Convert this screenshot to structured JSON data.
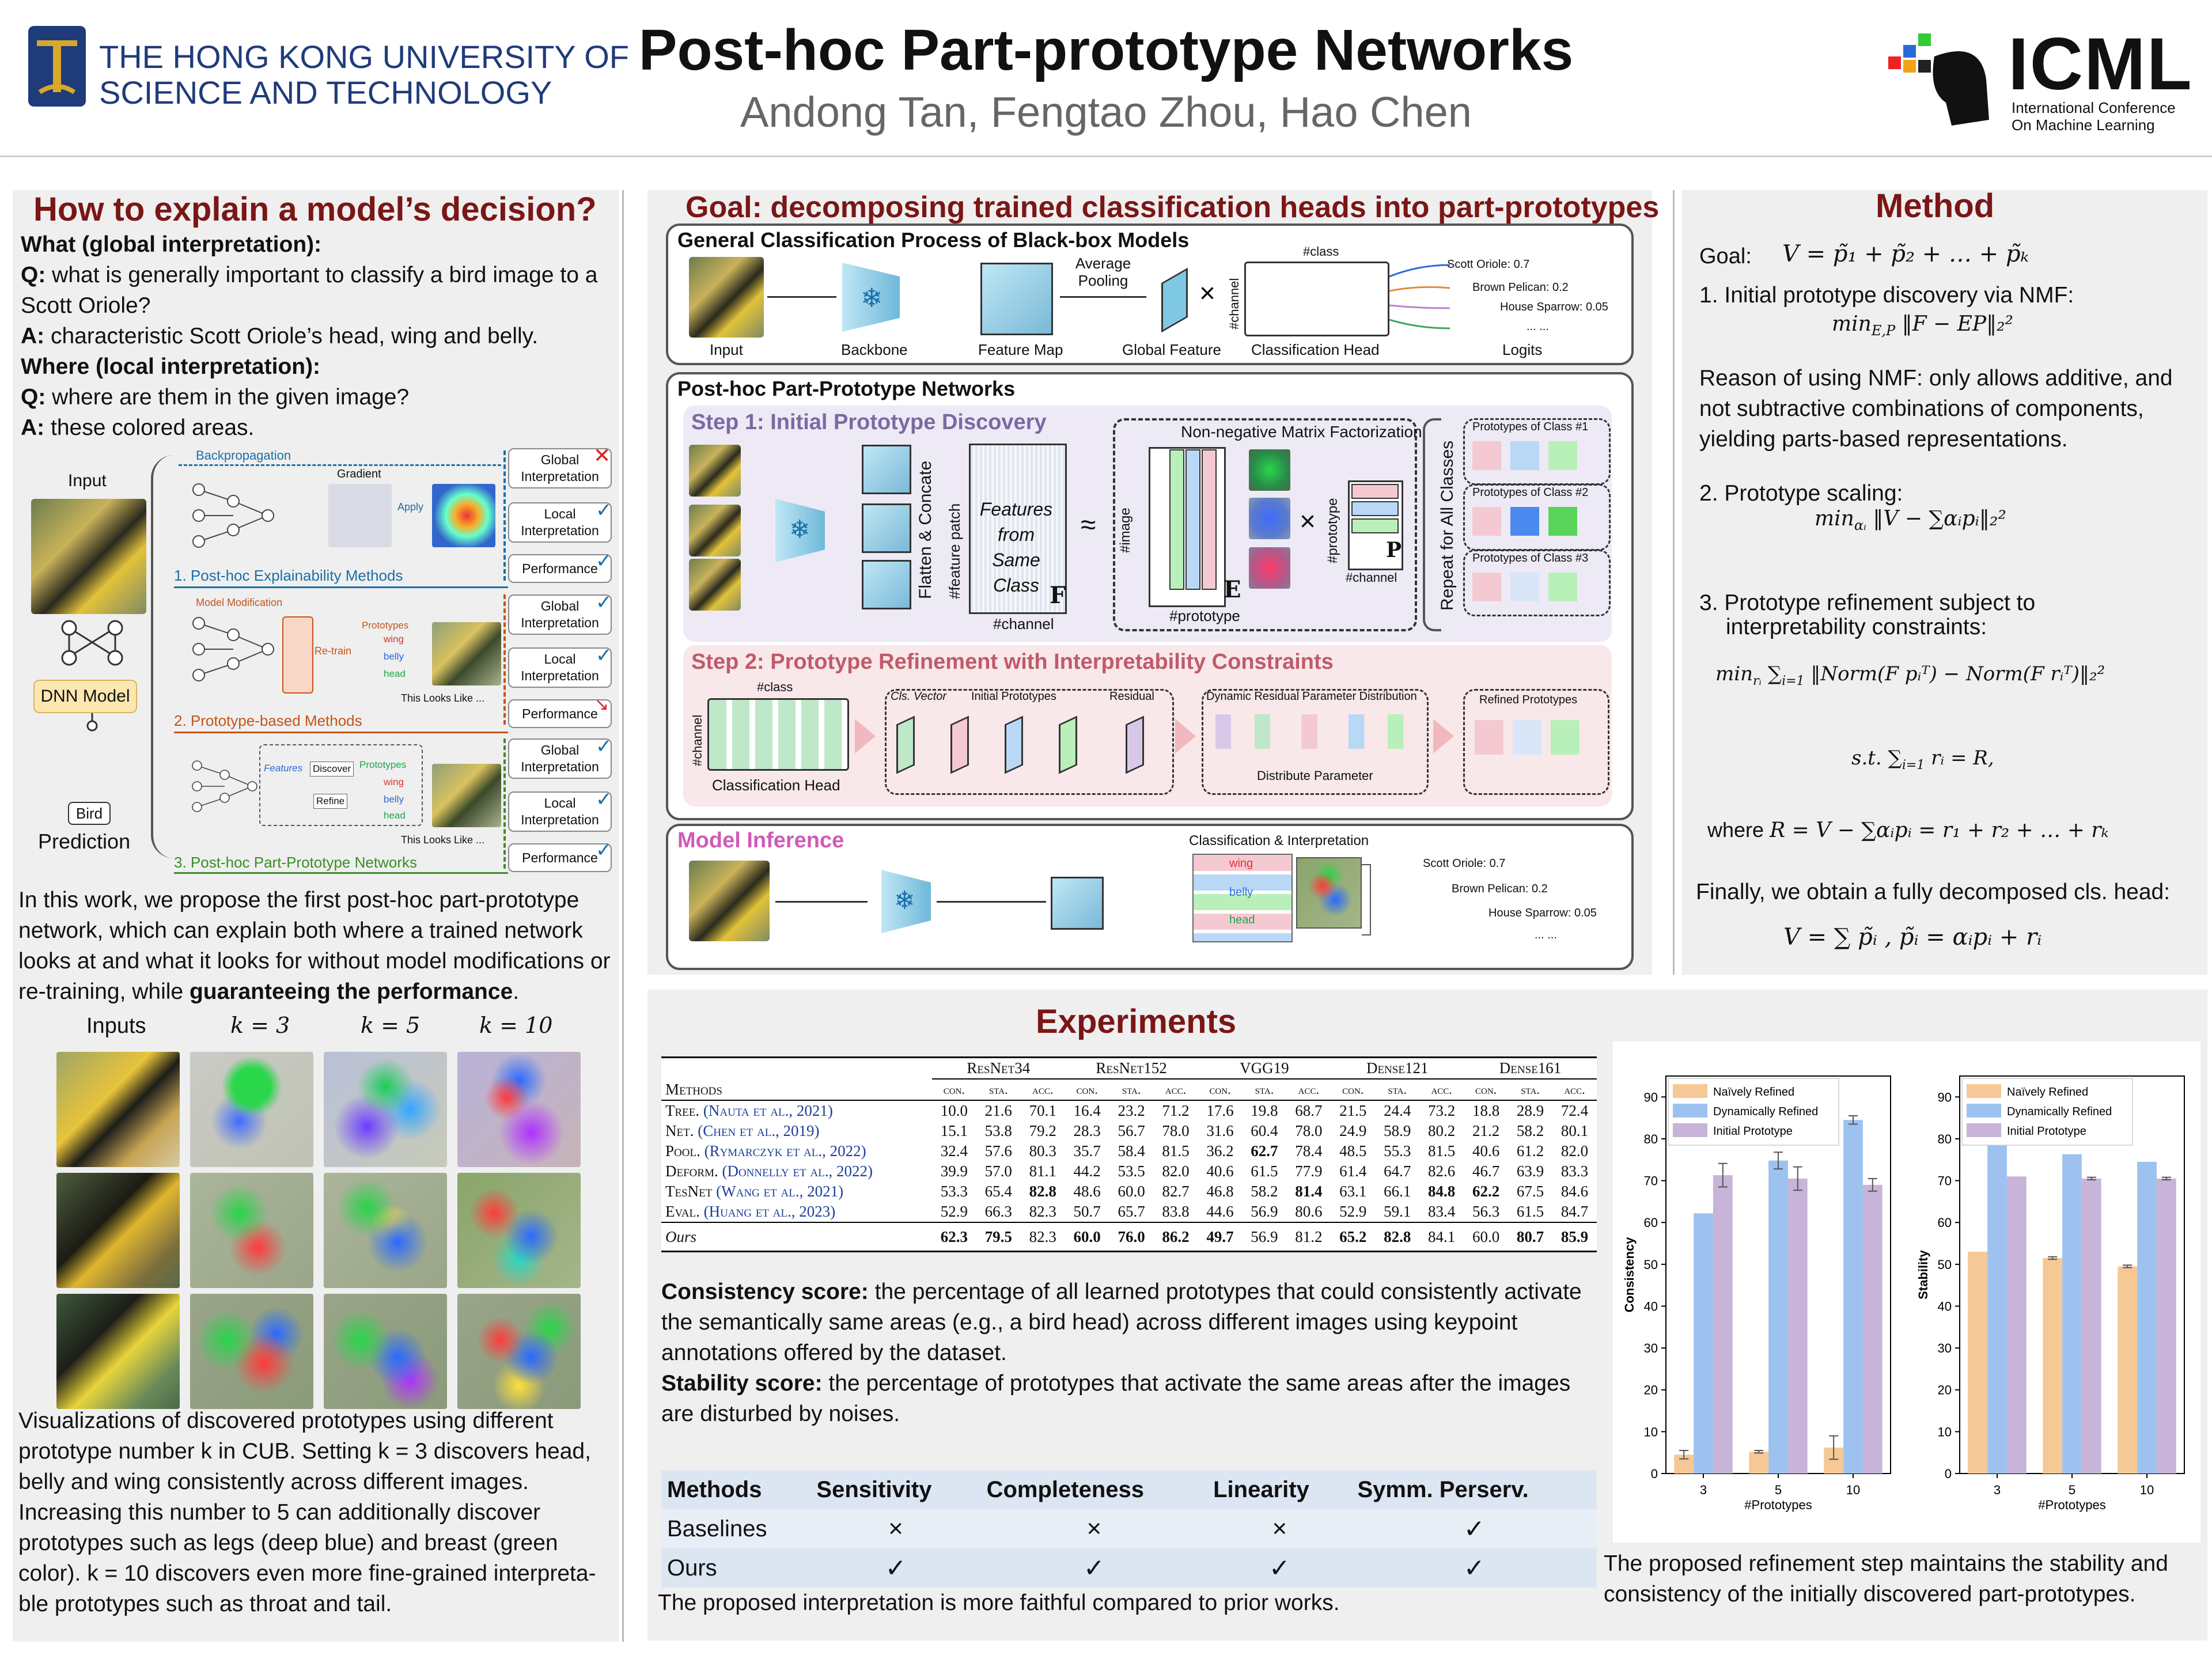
{
  "header": {
    "university": "THE HONG KONG UNIVERSITY OF SCIENCE AND TECHNOLOGY",
    "university_line1": "THE HONG KONG UNIVERSITY OF",
    "university_line2": "SCIENCE AND TECHNOLOGY",
    "title": "Post-hoc Part-prototype Networks",
    "authors": "Andong Tan, Fengtao Zhou, Hao Chen",
    "conf_logo": "ICML",
    "conf_line1": "International Conference",
    "conf_line2": "On Machine Learning"
  },
  "left": {
    "title": "How to explain a model’s decision?",
    "what_head": "What (global interpretation):",
    "q1_label": "Q:",
    "q1": " what is generally important to classify a bird image to a Scott Oriole?",
    "a1_label": "A:",
    "a1": " characteristic Scott Oriole’s head, wing and belly.",
    "where_head": "Where (local interpretation):",
    "q2_label": "Q:",
    "q2": " where are them in the given image?",
    "a2_label": "A:",
    "a2": " these colored areas.",
    "fig": {
      "input": "Input",
      "dnn": "DNN Model",
      "bird": "Bird",
      "prediction": "Prediction",
      "backprop": "Backpropagation",
      "gradient": "Gradient",
      "apply": "Apply",
      "m1": "1. Post-hoc Explainability Methods",
      "m2": "2. Prototype-based Methods",
      "m3": "3. Post-hoc Part-Prototype Networks",
      "model_mod": "Model Modification",
      "retrain": "Re-train",
      "prototypes": "Prototypes",
      "wing": "wing",
      "belly": "belly",
      "head": "head",
      "looks": "This Looks Like ...",
      "features": "Features",
      "discover": "Discover",
      "refine": "Refine",
      "global": "Global Interpretation",
      "local": "Local Interpretation",
      "performance": "Performance"
    },
    "intro_a": "In this work, we propose the first post-hoc part-prototype network, which can explain both where a trained network looks at and what it looks for without model modifications or re-training, while ",
    "intro_b": "guaranteeing the performance",
    "intro_c": ".",
    "vis_headers": [
      "Inputs",
      "k = 3",
      "k = 5",
      "k = 10"
    ],
    "vis_caption": "Visualizations of discovered prototypes using different prototype number k in CUB. Setting k = 3 discovers head, belly and wing consistently across different images. Increasing this number to 5 can additionally discover prototypes such as legs (deep blue) and breast (green color). k = 10 discovers even more fine-grained interpreta-ble prototypes such as throat and tail."
  },
  "goal": {
    "title": "Goal: decomposing trained classification heads into part-prototypes",
    "general_title": "General Classification Process of Black-box Models",
    "input": "Input",
    "backbone": "Backbone",
    "feature_map": "Feature Map",
    "avg_pool": "Average Pooling",
    "global_feature": "Global Feature",
    "cls_head": "Classification Head",
    "logits": "Logits",
    "hash_class": "#class",
    "hash_channel": "#channel",
    "logit_items": [
      "Scott Oriole: 0.7",
      "Brown Pelican: 0.2",
      "House Sparrow: 0.05",
      "... ..."
    ],
    "pp_title": "Post-hoc Part-Prototype Networks",
    "step1": "Step 1: Initial Prototype Discovery",
    "flatten": "Flatten & Concate",
    "feature_patch": "#feature patch",
    "features_from": "Features from Same Class",
    "F": "F",
    "nmf": "Non-negative Matrix Factorization",
    "image": "#image",
    "prototype": "#prototype",
    "E": "E",
    "P": "P",
    "repeat": "Repeat for All Classes",
    "protos": [
      "Prototypes of Class #1",
      "Prototypes of Class #2",
      "Prototypes of Class #3"
    ],
    "step2": "Step 2: Prototype Refinement with Interpretability Constraints",
    "cls_vector": "Cls. Vector",
    "init_protos": "Initial Prototypes",
    "residual": "Residual",
    "dyn_res": "Dynamic Residual Parameter Distribution",
    "distribute": "Distribute Parameter",
    "refined": "Refined Prototypes",
    "inference": "Model Inference",
    "cls_interp": "Classification & Interpretation"
  },
  "method": {
    "title": "Method",
    "goal_label": "Goal:",
    "s1": "1. Initial prototype discovery via NMF:",
    "reason": "Reason of using NMF: only allows additive, and not subtractive combinations of components, yielding parts-based representations.",
    "s2": "2. Prototype scaling:",
    "s3a": "3. Prototype refinement subject to",
    "s3b": "interpretability constraints:",
    "where": "where",
    "final": "Finally, we obtain a fully decomposed cls. head:"
  },
  "experiments": {
    "title": "Experiments",
    "table_groups": [
      "ResNet34",
      "ResNet152",
      "VGG19",
      "Dense121",
      "Dense161"
    ],
    "table_methods_head": "Methods",
    "table_sub": [
      "con.",
      "sta.",
      "acc."
    ],
    "rows": [
      {
        "m": "Tree.",
        "ref": "(Nauta et al., 2021)",
        "v": [
          "10.0",
          "21.6",
          "70.1",
          "16.4",
          "23.2",
          "71.2",
          "17.6",
          "19.8",
          "68.7",
          "21.5",
          "24.4",
          "73.2",
          "18.8",
          "28.9",
          "72.4"
        ]
      },
      {
        "m": "Net.",
        "ref": "(Chen et al., 2019)",
        "v": [
          "15.1",
          "53.8",
          "79.2",
          "28.3",
          "56.7",
          "78.0",
          "31.6",
          "60.4",
          "78.0",
          "24.9",
          "58.9",
          "80.2",
          "21.2",
          "58.2",
          "80.1"
        ]
      },
      {
        "m": "Pool.",
        "ref": "(Rymarczyk et al., 2022)",
        "v": [
          "32.4",
          "57.6",
          "80.3",
          "35.7",
          "58.4",
          "81.5",
          "36.2",
          "62.7",
          "78.4",
          "48.5",
          "55.3",
          "81.5",
          "40.6",
          "61.2",
          "82.0"
        ]
      },
      {
        "m": "Deform.",
        "ref": "(Donnelly et al., 2022)",
        "v": [
          "39.9",
          "57.0",
          "81.1",
          "44.2",
          "53.5",
          "82.0",
          "40.6",
          "61.5",
          "77.9",
          "61.4",
          "64.7",
          "82.6",
          "46.7",
          "63.9",
          "83.3"
        ]
      },
      {
        "m": "TesNet",
        "ref": "(Wang et al., 2021)",
        "v": [
          "53.3",
          "65.4",
          "82.8",
          "48.6",
          "60.0",
          "82.7",
          "46.8",
          "58.2",
          "81.4",
          "63.1",
          "66.1",
          "84.8",
          "62.2",
          "67.5",
          "84.6"
        ]
      },
      {
        "m": "Eval.",
        "ref": "(Huang et al., 2023)",
        "v": [
          "52.9",
          "66.3",
          "82.3",
          "50.7",
          "65.7",
          "83.8",
          "44.6",
          "56.9",
          "80.6",
          "52.9",
          "59.1",
          "83.4",
          "56.3",
          "61.5",
          "84.7"
        ]
      }
    ],
    "ours_row": {
      "m": "Ours",
      "v": [
        "62.3",
        "79.5",
        "82.3",
        "60.0",
        "76.0",
        "86.2",
        "49.7",
        "56.9",
        "81.2",
        "65.2",
        "82.8",
        "84.1",
        "60.0",
        "80.7",
        "85.9"
      ]
    },
    "consistency_label": "Consistency score:",
    "consistency_text": " the percentage of all learned prototypes that could consistently activate the semantically same areas (e.g., a bird head) across different images using keypoint annotations offered by the dataset.",
    "stability_label": "Stability score:",
    "stability_text": " the percentage of prototypes that activate the same areas after the images are disturbed by noises.",
    "props_headers": [
      "Methods",
      "Sensitivity",
      "Completeness",
      "Linearity",
      "Symm. Perserv."
    ],
    "props_rows": [
      {
        "name": "Baselines",
        "vals": [
          "×",
          "×",
          "×",
          "✓"
        ]
      },
      {
        "name": "Ours",
        "vals": [
          "✓",
          "✓",
          "✓",
          "✓"
        ]
      }
    ],
    "props_caption": "The proposed interpretation is more faithful compared to prior works.",
    "chart_caption": "The proposed refinement step maintains the stability and consistency of the initially discovered part-prototypes."
  },
  "chart_data": [
    {
      "type": "bar",
      "title": "",
      "xlabel": "#Prototypes",
      "ylabel": "Consistency",
      "categories": [
        "3",
        "5",
        "10"
      ],
      "ylim": [
        0,
        95
      ],
      "yticks": [
        0,
        10,
        20,
        30,
        40,
        50,
        60,
        70,
        80,
        90
      ],
      "series": [
        {
          "name": "Naïvely Refined",
          "color": "#f5c896",
          "values": [
            4.5,
            5.2,
            6.2
          ],
          "err": [
            1.0,
            0.3,
            2.8
          ]
        },
        {
          "name": "Dynamically Refined",
          "color": "#9ec2ef",
          "values": [
            62.2,
            74.8,
            84.5
          ],
          "err": [
            0,
            2.0,
            1.0
          ]
        },
        {
          "name": "Initial Prototype",
          "color": "#c8b3d9",
          "values": [
            71.3,
            70.5,
            69.0
          ],
          "err": [
            2.8,
            2.8,
            1.5
          ]
        }
      ],
      "legend": "top-left"
    },
    {
      "type": "bar",
      "title": "",
      "xlabel": "#Prototypes",
      "ylabel": "Stability",
      "categories": [
        "3",
        "5",
        "10"
      ],
      "ylim": [
        0,
        95
      ],
      "yticks": [
        0,
        10,
        20,
        30,
        40,
        50,
        60,
        70,
        80,
        90
      ],
      "series": [
        {
          "name": "Naïvely Refined",
          "color": "#f5c896",
          "values": [
            53.0,
            51.5,
            49.5
          ],
          "err": [
            0,
            0.3,
            0.3
          ]
        },
        {
          "name": "Dynamically Refined",
          "color": "#9ec2ef",
          "values": [
            79.5,
            76.3,
            74.5
          ],
          "err": [
            0,
            0,
            0
          ]
        },
        {
          "name": "Initial Prototype",
          "color": "#c8b3d9",
          "values": [
            71.0,
            70.5,
            70.5
          ],
          "err": [
            0,
            0.3,
            0.3
          ]
        }
      ],
      "legend": "top-left"
    }
  ]
}
